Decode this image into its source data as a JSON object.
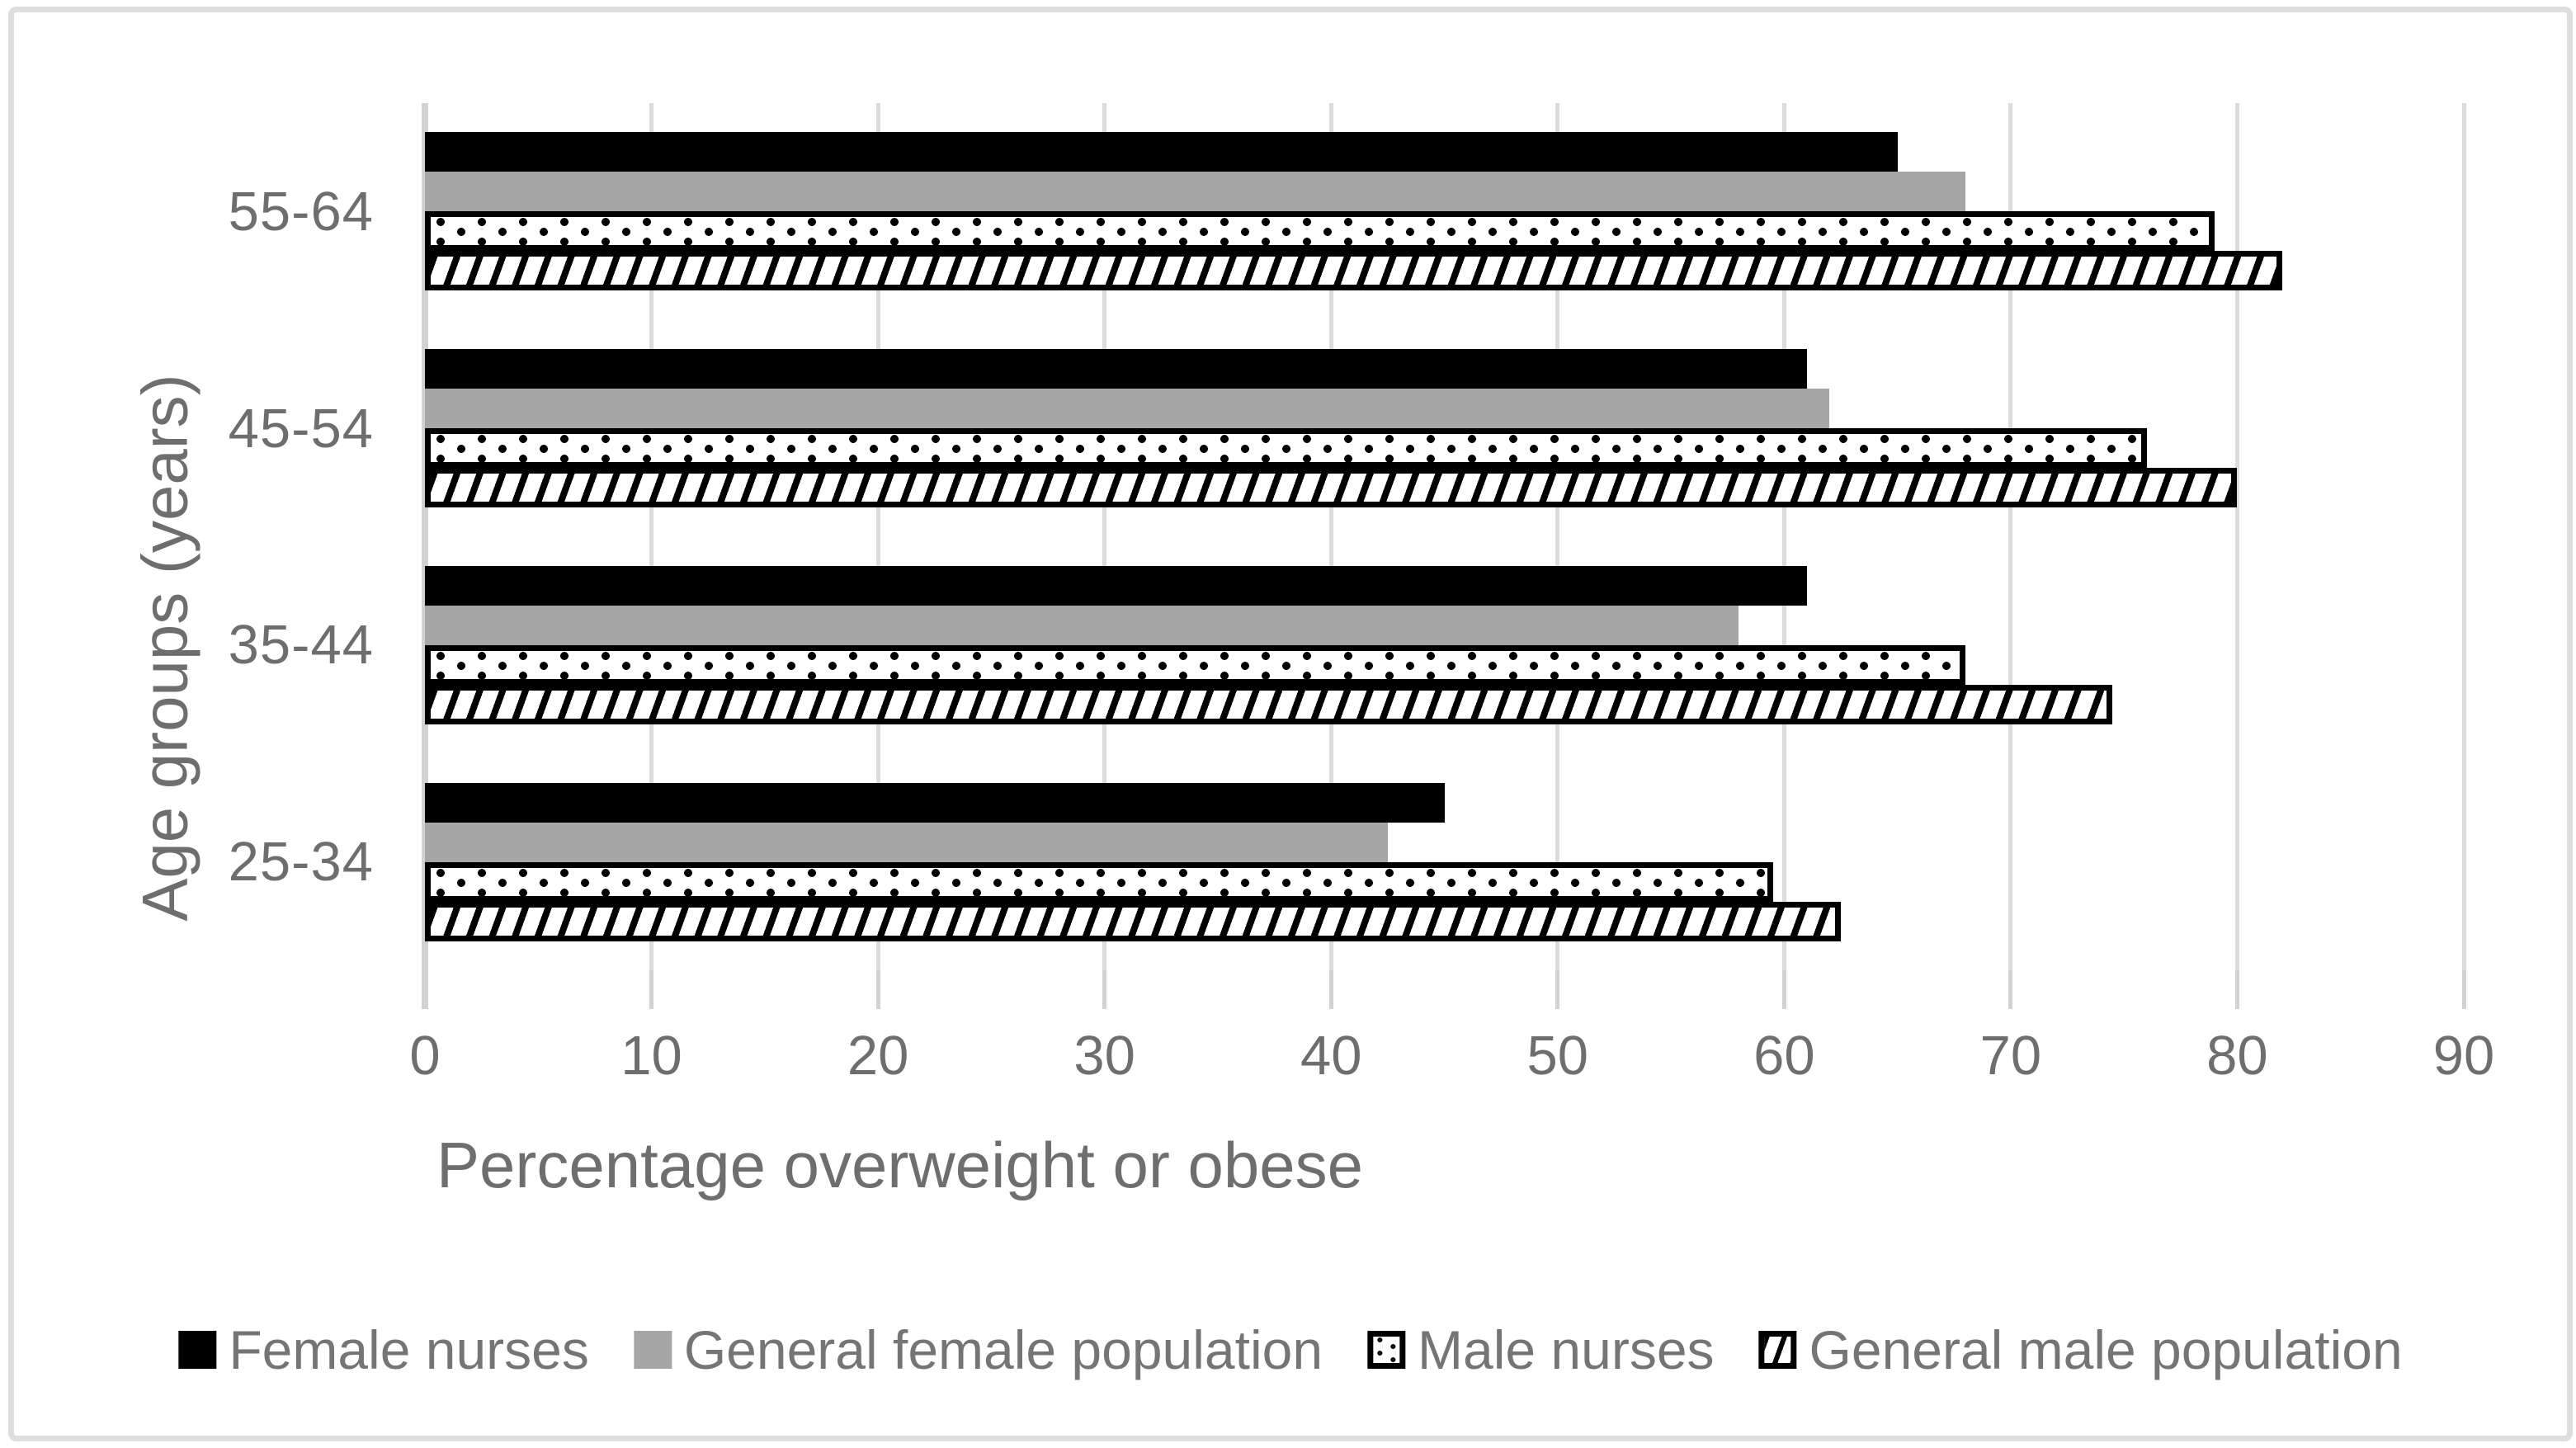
{
  "chart_data": {
    "type": "bar",
    "orientation": "horizontal",
    "title": "",
    "xlabel": "Percentage overweight or obese",
    "ylabel": "Age groups (years)",
    "categories": [
      "55-64",
      "45-54",
      "35-44",
      "25-34"
    ],
    "series": [
      {
        "name": "Female nurses",
        "pattern": "solid-black",
        "color": "#000000",
        "values": [
          65,
          61,
          61,
          45
        ]
      },
      {
        "name": "General female population",
        "pattern": "solid-gray",
        "color": "#a6a6a6",
        "values": [
          68,
          62,
          58,
          42.5
        ]
      },
      {
        "name": "Male nurses",
        "pattern": "dots",
        "color": "#ffffff",
        "values": [
          79,
          76,
          68,
          59.5
        ]
      },
      {
        "name": "General male population",
        "pattern": "hatch",
        "color": "#ffffff",
        "values": [
          82,
          80,
          74.5,
          62.5
        ]
      }
    ],
    "xlim": [
      0,
      90
    ],
    "x_ticks": [
      0,
      10,
      20,
      30,
      40,
      50,
      60,
      70,
      80,
      90
    ],
    "grid": true,
    "legend_position": "bottom",
    "text_color": "#6e6e6e",
    "gridline_color": "#dcdcdc"
  }
}
